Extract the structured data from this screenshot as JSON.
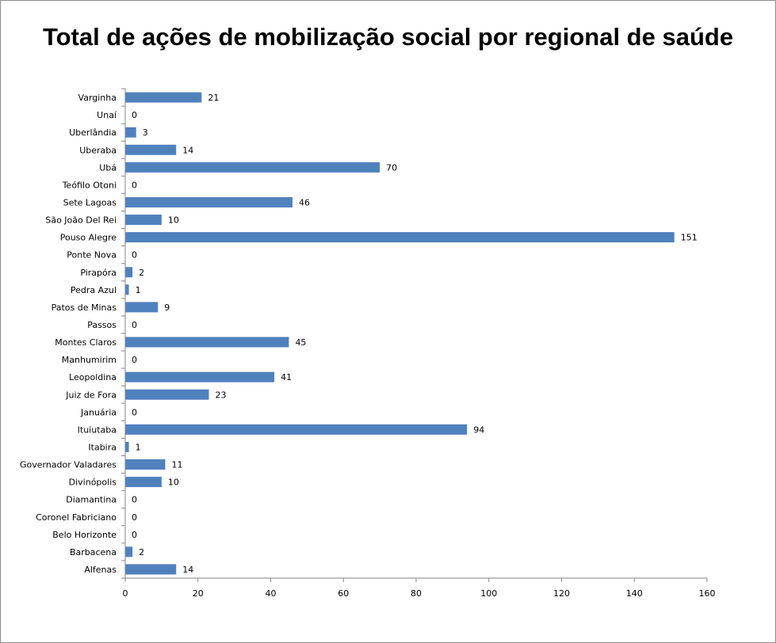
{
  "chart_data": {
    "type": "bar",
    "orientation": "horizontal",
    "title": "Total de ações de mobilização social por regional de saúde",
    "categories": [
      "Varginha",
      "Unaí",
      "Uberlândia",
      "Uberaba",
      "Ubá",
      "Teófilo Otoni",
      "Sete Lagoas",
      "São João Del Rei",
      "Pouso Alegre",
      "Ponte Nova",
      "Pirapóra",
      "Pedra Azul",
      "Patos de Minas",
      "Passos",
      "Montes Claros",
      "Manhumirim",
      "Leopoldina",
      "Juiz de Fora",
      "Januária",
      "Ituiutaba",
      "Itabira",
      "Governador Valadares",
      "Divinópolis",
      "Diamantina",
      "Coronel Fabriciano",
      "Belo Horizonte",
      "Barbacena",
      "Alfenas"
    ],
    "values": [
      21,
      0,
      3,
      14,
      70,
      0,
      46,
      10,
      151,
      0,
      2,
      1,
      9,
      0,
      45,
      0,
      41,
      23,
      0,
      94,
      1,
      11,
      10,
      0,
      0,
      0,
      2,
      14
    ],
    "xlim": [
      0,
      160
    ],
    "xticks": [
      0,
      20,
      40,
      60,
      80,
      100,
      120,
      140,
      160
    ],
    "bar_color": "#4f81bd",
    "data_labels": true,
    "legend": "none",
    "grid": false
  }
}
